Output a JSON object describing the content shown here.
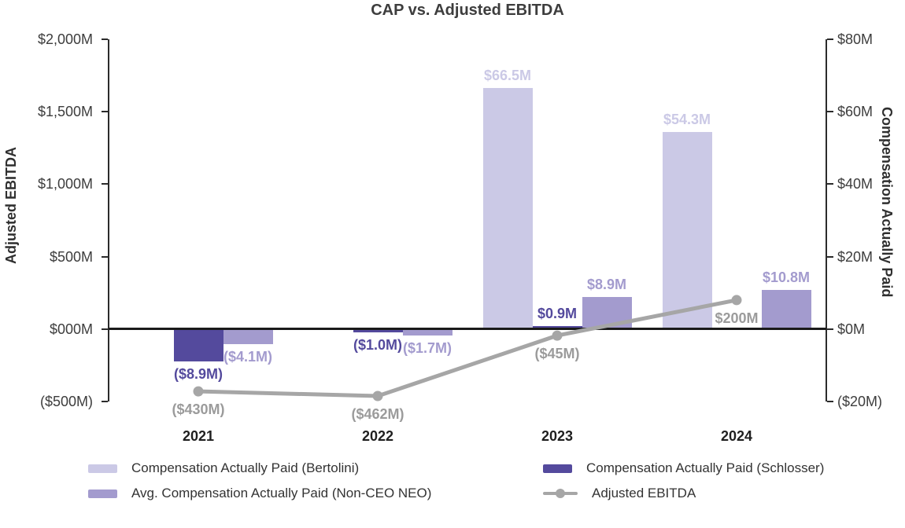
{
  "title": "CAP vs. Adjusted EBITDA",
  "chart_data": {
    "type": "combo-bar-line",
    "categories": [
      "2021",
      "2022",
      "2023",
      "2024"
    ],
    "left_axis": {
      "label": "Adjusted EBITDA",
      "units": "millions USD",
      "min": -500,
      "max": 2000,
      "ticks": [
        {
          "value": 2000,
          "label": "$2,000M"
        },
        {
          "value": 1500,
          "label": "$1,500M"
        },
        {
          "value": 1000,
          "label": "$1,000M"
        },
        {
          "value": 500,
          "label": "$500M"
        },
        {
          "value": 0,
          "label": "$000M"
        },
        {
          "value": -500,
          "label": "($500M)"
        }
      ]
    },
    "right_axis": {
      "label": "Compensation Actually Paid",
      "units": "millions USD",
      "min": -20,
      "max": 80,
      "ticks": [
        {
          "value": 80,
          "label": "$80M"
        },
        {
          "value": 60,
          "label": "$60M"
        },
        {
          "value": 40,
          "label": "$40M"
        },
        {
          "value": 20,
          "label": "$20M"
        },
        {
          "value": 0,
          "label": "$0M"
        },
        {
          "value": -20,
          "label": "($20M)"
        }
      ]
    },
    "bar_series": [
      {
        "name": "Compensation Actually Paid (Bertolini)",
        "id": "bertolini",
        "color": "#cbc9e6",
        "slot": 0,
        "axis": "right",
        "values": [
          null,
          null,
          66.5,
          54.3
        ],
        "labels": [
          null,
          null,
          "$66.5M",
          "$54.3M"
        ]
      },
      {
        "name": "Compensation Actually Paid (Schlosser)",
        "id": "schlosser",
        "color": "#544a9d",
        "slot": 1,
        "axis": "right",
        "values": [
          -8.9,
          -1.0,
          0.9,
          null
        ],
        "labels": [
          "($8.9M)",
          "($1.0M)",
          "$0.9M",
          null
        ]
      },
      {
        "name": "Avg. Compensation Actually Paid (Non-CEO NEO)",
        "id": "non-ceo-neo",
        "color": "#a39bce",
        "slot": 2,
        "axis": "right",
        "values": [
          -4.1,
          -1.7,
          8.9,
          10.8
        ],
        "labels": [
          "($4.1M)",
          "($1.7M)",
          "$8.9M",
          "$10.8M"
        ]
      }
    ],
    "line_series": {
      "name": "Adjusted EBITDA",
      "id": "adjusted-ebitda",
      "color": "#a6a6a6",
      "label_color": "#9b9b9b",
      "axis": "left",
      "values": [
        -430,
        -462,
        -45,
        200
      ],
      "labels": [
        "($430M)",
        "($462M)",
        "($45M)",
        "$200M"
      ]
    },
    "legend": [
      {
        "label": "Compensation Actually Paid (Bertolini)",
        "swatch": "bar",
        "color": "#cbc9e6",
        "id": "bertolini"
      },
      {
        "label": "Avg. Compensation Actually Paid (Non-CEO NEO)",
        "swatch": "bar",
        "color": "#a39bce",
        "id": "non-ceo-neo"
      },
      {
        "label": "Compensation Actually Paid (Schlosser)",
        "swatch": "bar",
        "color": "#544a9d",
        "id": "schlosser"
      },
      {
        "label": "Adjusted EBITDA",
        "swatch": "line",
        "color": "#a6a6a6",
        "id": "adjusted-ebitda"
      }
    ]
  }
}
